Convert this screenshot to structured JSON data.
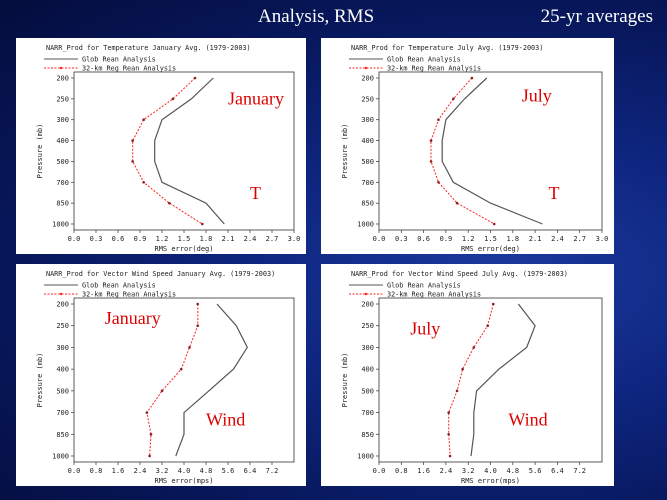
{
  "header": {
    "title": "Analysis, RMS",
    "subtitle": "25-yr averages"
  },
  "colors": {
    "background": "#0b1f6e",
    "glob_line": "#555555",
    "regional_line": "#ff2222",
    "overlay_text": "#dd0000"
  },
  "chart_data": [
    {
      "type": "line",
      "title": "NARR_Prod for Temperature January Avg. (1979-2003)",
      "xlabel": "RMS error(deg)",
      "ylabel": "Pressure (mb)",
      "xticks": [
        "0.0",
        "0.3",
        "0.6",
        "0.9",
        "1.2",
        "1.5",
        "1.8",
        "2.1",
        "2.4",
        "2.7",
        "3.0"
      ],
      "xlim": [
        0,
        3.0
      ],
      "yticks": [
        "200",
        "250",
        "300",
        "400",
        "500",
        "700",
        "850",
        "1000"
      ],
      "y": [
        200,
        250,
        300,
        400,
        500,
        700,
        850,
        1000
      ],
      "overlay": [
        "January",
        "T"
      ],
      "series": [
        {
          "name": "Glob Rean Analysis",
          "values": [
            1.9,
            1.6,
            1.2,
            1.1,
            1.1,
            1.2,
            1.8,
            2.05
          ]
        },
        {
          "name": "32-km Reg Rean Analysis",
          "values": [
            1.65,
            1.35,
            0.95,
            0.8,
            0.8,
            0.95,
            1.3,
            1.75
          ]
        }
      ]
    },
    {
      "type": "line",
      "title": "NARR_Prod for Temperature July Avg. (1979-2003)",
      "xlabel": "RMS error(deg)",
      "ylabel": "Pressure (mb)",
      "xticks": [
        "0.0",
        "0.3",
        "0.6",
        "0.9",
        "1.2",
        "1.5",
        "1.8",
        "2.1",
        "2.4",
        "2.7",
        "3.0"
      ],
      "xlim": [
        0,
        3.0
      ],
      "yticks": [
        "200",
        "250",
        "300",
        "400",
        "500",
        "700",
        "850",
        "1000"
      ],
      "y": [
        200,
        250,
        300,
        400,
        500,
        700,
        850,
        1000
      ],
      "overlay": [
        "July",
        "T"
      ],
      "series": [
        {
          "name": "Glob Rean Analysis",
          "values": [
            1.45,
            1.15,
            0.9,
            0.85,
            0.85,
            1.0,
            1.5,
            2.2
          ]
        },
        {
          "name": "32-km Reg Rean Analysis",
          "values": [
            1.25,
            1.0,
            0.8,
            0.7,
            0.7,
            0.8,
            1.05,
            1.55
          ]
        }
      ]
    },
    {
      "type": "line",
      "title": "NARR_Prod for Vector Wind Speed January Avg. (1979-2003)",
      "xlabel": "RMS error(mps)",
      "ylabel": "Pressure (mb)",
      "xticks": [
        "0.0",
        "0.8",
        "1.6",
        "2.4",
        "3.2",
        "4.0",
        "4.8",
        "5.6",
        "6.4",
        "7.2"
      ],
      "xlim": [
        0,
        8.0
      ],
      "yticks": [
        "200",
        "250",
        "300",
        "400",
        "500",
        "700",
        "850",
        "1000"
      ],
      "y": [
        200,
        250,
        300,
        400,
        500,
        700,
        850,
        1000
      ],
      "overlay": [
        "January",
        "Wind"
      ],
      "series": [
        {
          "name": "Glob Rean Analysis",
          "values": [
            5.2,
            5.9,
            6.3,
            5.8,
            4.9,
            4.0,
            4.0,
            3.7
          ]
        },
        {
          "name": "32-km Reg Rean Analysis",
          "values": [
            4.5,
            4.5,
            4.2,
            3.9,
            3.2,
            2.65,
            2.8,
            2.75
          ]
        }
      ]
    },
    {
      "type": "line",
      "title": "NARR_Prod for Vector Wind Speed July Avg. (1979-2003)",
      "xlabel": "RMS error(mps)",
      "ylabel": "Pressure (mb)",
      "xticks": [
        "0.0",
        "0.8",
        "1.6",
        "2.4",
        "3.2",
        "4.0",
        "4.8",
        "5.6",
        "6.4",
        "7.2"
      ],
      "xlim": [
        0,
        8.0
      ],
      "yticks": [
        "200",
        "250",
        "300",
        "400",
        "500",
        "700",
        "850",
        "1000"
      ],
      "y": [
        200,
        250,
        300,
        400,
        500,
        700,
        850,
        1000
      ],
      "overlay": [
        "July",
        "Wind"
      ],
      "series": [
        {
          "name": "Glob Rean Analysis",
          "values": [
            5.0,
            5.6,
            5.3,
            4.3,
            3.5,
            3.4,
            3.4,
            3.3
          ]
        },
        {
          "name": "32-km Reg Rean Analysis",
          "values": [
            4.1,
            3.9,
            3.4,
            3.0,
            2.8,
            2.5,
            2.5,
            2.55
          ]
        }
      ]
    }
  ]
}
